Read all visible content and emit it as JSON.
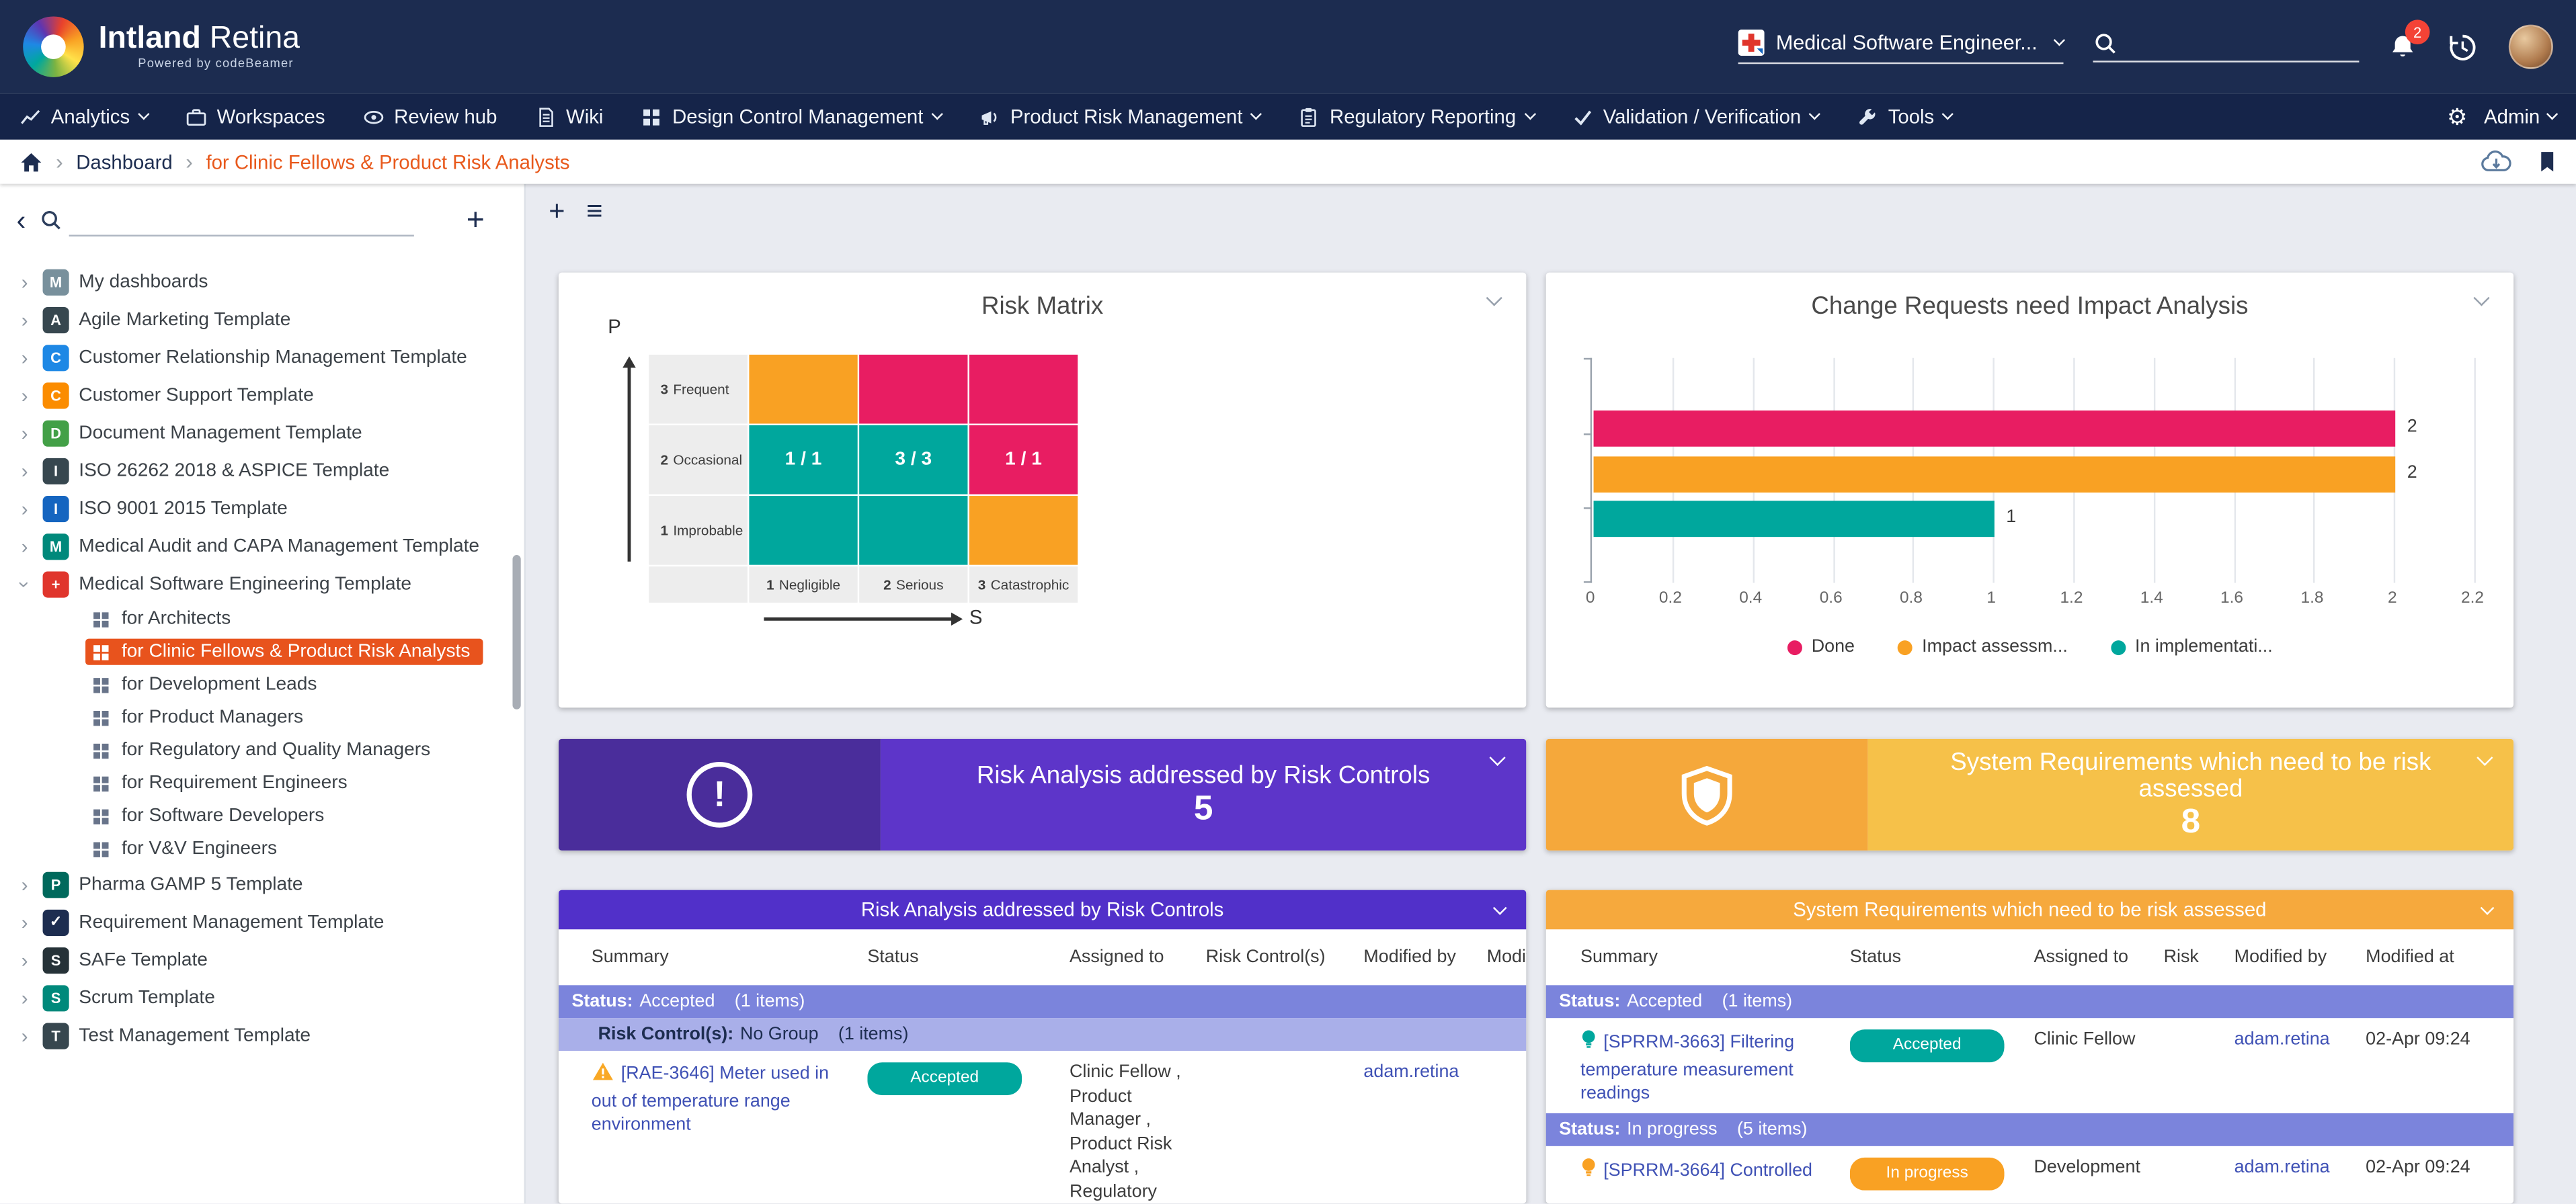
{
  "topbar": {
    "brand_bold": "Intland",
    "brand_light": "Retina",
    "brand_subtitle": "Powered by codeBeamer",
    "project_selector": "Medical Software Engineer...",
    "search_value": "",
    "notification_count": "2"
  },
  "menubar": {
    "items": [
      {
        "label": "Analytics",
        "icon": "chart-icon",
        "dropdown": true
      },
      {
        "label": "Workspaces",
        "icon": "workspaces-icon",
        "dropdown": false
      },
      {
        "label": "Review hub",
        "icon": "review-icon",
        "dropdown": false
      },
      {
        "label": "Wiki",
        "icon": "wiki-icon",
        "dropdown": false
      },
      {
        "label": "Design Control Management",
        "icon": "design-icon",
        "dropdown": true
      },
      {
        "label": "Product Risk Management",
        "icon": "risk-icon",
        "dropdown": true
      },
      {
        "label": "Regulatory Reporting",
        "icon": "report-icon",
        "dropdown": true
      },
      {
        "label": "Validation / Verification",
        "icon": "check-icon",
        "dropdown": true
      },
      {
        "label": "Tools",
        "icon": "tools-icon",
        "dropdown": true
      }
    ],
    "gear_glyph": "⚙",
    "admin_label": "Admin"
  },
  "breadcrumb": {
    "items": [
      "Dashboard",
      "for Clinic Fellows & Product Risk Analysts"
    ]
  },
  "sidebar": {
    "back_glyph": "‹",
    "add_glyph": "+",
    "expander_glyph": "›",
    "search_value": "",
    "tree": [
      {
        "label": "My dashboards",
        "color": "#78909c",
        "glyph": "M"
      },
      {
        "label": "Agile Marketing Template",
        "color": "#37474f",
        "glyph": "A"
      },
      {
        "label": "Customer Relationship Management Template",
        "color": "#1e88e5",
        "glyph": "C"
      },
      {
        "label": "Customer Support Template",
        "color": "#fb8c00",
        "glyph": "C"
      },
      {
        "label": "Document Management Template",
        "color": "#43a047",
        "glyph": "D"
      },
      {
        "label": "ISO 26262 2018 & ASPICE Template",
        "color": "#37474f",
        "glyph": "I"
      },
      {
        "label": "ISO 9001 2015 Template",
        "color": "#1565c0",
        "glyph": "I"
      },
      {
        "label": "Medical Audit and CAPA Management Template",
        "color": "#00897b",
        "glyph": "M"
      },
      {
        "label": "Medical Software Engineering Template",
        "color": "#e0352c",
        "glyph": "+",
        "expanded": true,
        "children": [
          "for Architects",
          "for Clinic Fellows & Product Risk Analysts",
          "for Development Leads",
          "for Product Managers",
          "for Regulatory and Quality Managers",
          "for Requirement Engineers",
          "for Software Developers",
          "for V&V Engineers"
        ],
        "selected_child": "for Clinic Fellows & Product Risk Analysts"
      },
      {
        "label": "Pharma GAMP 5 Template",
        "color": "#00695c",
        "glyph": "P"
      },
      {
        "label": "Requirement Management Template",
        "color": "#1d2d50",
        "glyph": "✓"
      },
      {
        "label": "SAFe Template",
        "color": "#263238",
        "glyph": "S"
      },
      {
        "label": "Scrum Template",
        "color": "#00897b",
        "glyph": "S"
      },
      {
        "label": "Test Management Template",
        "color": "#37474f",
        "glyph": "T"
      }
    ]
  },
  "main_toolbar": {
    "add_glyph": "+",
    "menu_glyph": "≡"
  },
  "risk_matrix": {
    "title": "Risk Matrix",
    "p_axis": "P",
    "s_axis": "S",
    "row_labels": [
      "3 Frequent",
      "2 Occasional",
      "1 Improbable"
    ],
    "col_labels": [
      "1 Negligible",
      "2 Serious",
      "3 Catastrophic"
    ],
    "cells": [
      [
        {
          "color": "orange",
          "text": ""
        },
        {
          "color": "pink",
          "text": ""
        },
        {
          "color": "pink",
          "text": ""
        }
      ],
      [
        {
          "color": "teal",
          "text": "1 / 1"
        },
        {
          "color": "teal",
          "text": "3 / 3"
        },
        {
          "color": "pink",
          "text": "1 / 1"
        }
      ],
      [
        {
          "color": "teal",
          "text": ""
        },
        {
          "color": "teal",
          "text": ""
        },
        {
          "color": "orange",
          "text": ""
        }
      ]
    ],
    "colors": {
      "teal": "#00a79d",
      "pink": "#e81d62",
      "orange": "#f9a123"
    }
  },
  "impact_chart": {
    "title": "Change Requests need Impact Analysis",
    "chart_data": {
      "type": "bar",
      "orientation": "horizontal",
      "series": [
        {
          "name": "Done",
          "color": "#e81d62",
          "value": 2
        },
        {
          "name": "Impact assessm...",
          "color": "#f9a123",
          "value": 2
        },
        {
          "name": "In implementati...",
          "color": "#00a79d",
          "value": 1
        }
      ],
      "xlim": [
        0,
        2.2
      ],
      "ticks": [
        0,
        0.2,
        0.4,
        0.6,
        0.8,
        1,
        1.2,
        1.4,
        1.6,
        1.8,
        2,
        2.2
      ],
      "grid": true,
      "legend_position": "bottom"
    }
  },
  "purple_card": {
    "title": "Risk Analysis addressed by Risk Controls",
    "value": "5"
  },
  "orange_card": {
    "title": "System Requirements which need to be risk assessed",
    "value": "8"
  },
  "left_table": {
    "title": "Risk Analysis addressed by Risk Controls",
    "columns": [
      "Summary",
      "Status",
      "Assigned to",
      "Risk Control(s)",
      "Modified by",
      "Modified at"
    ],
    "group1": {
      "prefix": "Status:",
      "value": "Accepted",
      "count": "(1 items)"
    },
    "group2": {
      "prefix": "Risk Control(s):",
      "value": "No Group",
      "count": "(1 items)"
    },
    "row": {
      "summary": "[RAE-3646] Meter used in out of temperature range environment",
      "status": "Accepted",
      "assigned_to": "Clinic Fellow , Product Manager , Product Risk Analyst , Regulatory",
      "modified_by": "adam.retina"
    }
  },
  "right_table": {
    "title": "System Requirements which need to be risk assessed",
    "columns": [
      "Summary",
      "Status",
      "Assigned to",
      "Risk",
      "Modified by",
      "Modified at"
    ],
    "group1": {
      "prefix": "Status:",
      "value": "Accepted",
      "count": "(1 items)"
    },
    "group2": {
      "prefix": "Status:",
      "value": "In progress",
      "count": "(5 items)"
    },
    "row1": {
      "summary": "[SPRRM-3663] Filtering temperature measurement readings",
      "status": "Accepted",
      "assigned_to": "Clinic Fellow",
      "modified_by": "adam.retina",
      "modified_at": "02-Apr 09:24"
    },
    "row2": {
      "summary": "[SPRRM-3664] Controlled",
      "status": "In progress",
      "assigned_to": "Development",
      "modified_by": "adam.retina",
      "modified_at": "02-Apr 09:24"
    }
  }
}
